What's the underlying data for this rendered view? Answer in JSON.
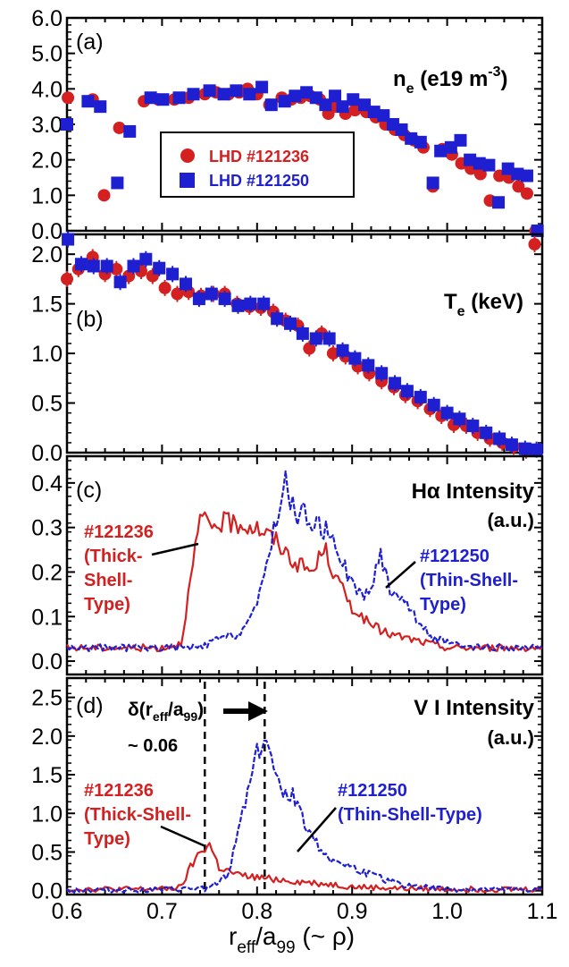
{
  "figure": {
    "x_axis_label": "r",
    "x_axis_sub1": "eff",
    "x_axis_mid": "/a",
    "x_axis_sub2": "99",
    "x_axis_tail": " (~ ρ)"
  },
  "chart_data": [
    {
      "type": "scatter",
      "panel": "(a)",
      "ylabel_main": "n",
      "ylabel_sub": "e",
      "ylabel_rest": " (e19 m",
      "ylabel_sup": "-3",
      "ylabel_close": ")",
      "xlim": [
        0.6,
        1.1
      ],
      "ylim": [
        0.0,
        6.0
      ],
      "x_ticks": [
        "0.6",
        "0.7",
        "0.8",
        "0.9",
        "1.0",
        "1.1"
      ],
      "y_ticks": [
        "0.0",
        "1.0",
        "2.0",
        "3.0",
        "4.0",
        "5.0",
        "6.0"
      ],
      "legend": [
        "LHD #121236",
        "LHD #121250"
      ],
      "series": [
        {
          "name": "LHD #121236",
          "color": "#d42020",
          "marker": "circle",
          "x": [
            0.601,
            0.627,
            0.639,
            0.655,
            0.681,
            0.696,
            0.713,
            0.728,
            0.745,
            0.757,
            0.77,
            0.781,
            0.79,
            0.8,
            0.813,
            0.826,
            0.836,
            0.846,
            0.856,
            0.866,
            0.875,
            0.883,
            0.893,
            0.903,
            0.915,
            0.925,
            0.935,
            0.945,
            0.955,
            0.965,
            0.975,
            0.985,
            0.995,
            1.005,
            1.015,
            1.025,
            1.035,
            1.045,
            1.055,
            1.065,
            1.075,
            1.084,
            1.093
          ],
          "y": [
            3.75,
            3.7,
            1.0,
            2.9,
            3.65,
            3.7,
            3.7,
            3.75,
            3.85,
            3.9,
            3.85,
            3.9,
            4.0,
            3.85,
            3.55,
            3.75,
            3.7,
            3.75,
            3.8,
            3.7,
            3.3,
            3.5,
            3.3,
            3.4,
            3.35,
            3.2,
            3.0,
            2.85,
            2.7,
            2.55,
            2.35,
            1.25,
            2.3,
            2.15,
            1.9,
            1.75,
            1.6,
            0.85,
            1.55,
            1.5,
            1.25,
            1.05,
            0.0
          ]
        },
        {
          "name": "LHD #121250",
          "color": "#1f1fd2",
          "marker": "square",
          "x": [
            0.6,
            0.622,
            0.635,
            0.653,
            0.666,
            0.688,
            0.701,
            0.718,
            0.733,
            0.75,
            0.765,
            0.778,
            0.792,
            0.805,
            0.815,
            0.829,
            0.84,
            0.852,
            0.862,
            0.872,
            0.882,
            0.89,
            0.901,
            0.913,
            0.923,
            0.933,
            0.943,
            0.952,
            0.962,
            0.972,
            0.985,
            0.993,
            1.004,
            1.014,
            1.024,
            1.034,
            1.044,
            1.054,
            1.064,
            1.074,
            1.084,
            1.095
          ],
          "y": [
            3.0,
            3.65,
            3.5,
            1.35,
            2.8,
            3.75,
            3.7,
            3.75,
            3.85,
            3.95,
            3.85,
            3.95,
            3.85,
            4.05,
            3.55,
            3.65,
            3.8,
            3.9,
            3.75,
            3.55,
            3.8,
            3.5,
            3.7,
            3.55,
            3.35,
            3.25,
            3.0,
            2.85,
            2.6,
            2.5,
            1.35,
            2.25,
            2.35,
            2.55,
            2.0,
            1.9,
            1.85,
            0.8,
            1.75,
            1.6,
            1.55,
            0.0
          ]
        }
      ]
    },
    {
      "type": "scatter",
      "panel": "(b)",
      "ylabel_main": "T",
      "ylabel_sub": "e",
      "ylabel_rest": " (keV)",
      "xlim": [
        0.6,
        1.1
      ],
      "ylim": [
        0.0,
        2.2
      ],
      "x_ticks": [
        "0.6",
        "0.7",
        "0.8",
        "0.9",
        "1.0",
        "1.1"
      ],
      "y_ticks": [
        "0.0",
        "0.5",
        "1.0",
        "1.5",
        "2.0"
      ],
      "series": [
        {
          "name": "LHD #121236",
          "color": "#d42020",
          "marker": "circle",
          "x": [
            0.6,
            0.612,
            0.627,
            0.64,
            0.652,
            0.665,
            0.678,
            0.69,
            0.703,
            0.716,
            0.728,
            0.741,
            0.754,
            0.766,
            0.779,
            0.792,
            0.804,
            0.817,
            0.83,
            0.843,
            0.855,
            0.868,
            0.88,
            0.893,
            0.906,
            0.918,
            0.931,
            0.944,
            0.956,
            0.969,
            0.982,
            0.994,
            1.007,
            1.02,
            1.032,
            1.045,
            1.058,
            1.07,
            1.083,
            1.092
          ],
          "y": [
            1.75,
            1.85,
            1.97,
            1.8,
            1.85,
            1.78,
            1.83,
            1.78,
            1.66,
            1.6,
            1.62,
            1.58,
            1.6,
            1.6,
            1.5,
            1.47,
            1.46,
            1.42,
            1.33,
            1.28,
            1.05,
            1.2,
            1.0,
            0.97,
            0.87,
            0.8,
            0.72,
            0.66,
            0.58,
            0.52,
            0.44,
            0.37,
            0.28,
            0.27,
            0.2,
            0.14,
            0.1,
            0.06,
            0.02,
            2.1
          ]
        },
        {
          "name": "LHD #121250",
          "color": "#1f1fd2",
          "marker": "square",
          "x": [
            0.601,
            0.615,
            0.628,
            0.642,
            0.656,
            0.67,
            0.683,
            0.697,
            0.711,
            0.725,
            0.739,
            0.752,
            0.766,
            0.78,
            0.793,
            0.807,
            0.821,
            0.835,
            0.848,
            0.862,
            0.876,
            0.89,
            0.903,
            0.917,
            0.931,
            0.945,
            0.958,
            0.972,
            0.986,
            1.0,
            1.013,
            1.027,
            1.041,
            1.055,
            1.068,
            1.082,
            1.094
          ],
          "y": [
            2.15,
            1.9,
            1.88,
            1.88,
            1.72,
            1.88,
            1.95,
            1.86,
            1.8,
            1.7,
            1.55,
            1.6,
            1.55,
            1.48,
            1.5,
            1.5,
            1.35,
            1.3,
            1.2,
            1.15,
            1.15,
            1.03,
            0.95,
            0.88,
            0.8,
            0.7,
            0.62,
            0.56,
            0.48,
            0.4,
            0.34,
            0.27,
            0.2,
            0.14,
            0.08,
            0.04,
            0.03
          ]
        }
      ]
    },
    {
      "type": "line",
      "panel": "(c)",
      "ylabel_main": "Hα Intensity",
      "ylabel_rest": "(a.u.)",
      "xlim": [
        0.6,
        1.1
      ],
      "ylim": [
        -0.03,
        0.46
      ],
      "x_ticks": [
        "0.6",
        "0.7",
        "0.8",
        "0.9",
        "1.0",
        "1.1"
      ],
      "y_ticks": [
        "0.0",
        "0.1",
        "0.2",
        "0.3",
        "0.4"
      ],
      "annotations": [
        {
          "lines": [
            "#121236",
            "(Thick-",
            "Shell-",
            "Type)"
          ],
          "color": "#d42020"
        },
        {
          "lines": [
            "#121250",
            "(Thin-Shell-",
            "Type)"
          ],
          "color": "#1f1fd2"
        }
      ],
      "series": [
        {
          "name": "#121236",
          "color": "#d42020",
          "x": [
            0.6,
            0.65,
            0.7,
            0.72,
            0.73,
            0.74,
            0.75,
            0.76,
            0.78,
            0.8,
            0.82,
            0.84,
            0.86,
            0.87,
            0.88,
            0.9,
            0.92,
            0.94,
            0.96,
            0.98,
            1.0,
            1.02,
            1.05,
            1.08,
            1.1
          ],
          "y": [
            0.03,
            0.03,
            0.03,
            0.04,
            0.18,
            0.32,
            0.3,
            0.31,
            0.31,
            0.3,
            0.27,
            0.22,
            0.2,
            0.26,
            0.2,
            0.12,
            0.08,
            0.06,
            0.05,
            0.04,
            0.03,
            0.03,
            0.03,
            0.03,
            0.03
          ]
        },
        {
          "name": "#121250",
          "color": "#1f1fd2",
          "x": [
            0.6,
            0.65,
            0.7,
            0.74,
            0.76,
            0.78,
            0.8,
            0.81,
            0.82,
            0.83,
            0.84,
            0.85,
            0.86,
            0.88,
            0.9,
            0.91,
            0.92,
            0.93,
            0.94,
            0.95,
            0.96,
            0.98,
            1.0,
            1.02,
            1.05,
            1.08,
            1.1
          ],
          "y": [
            0.03,
            0.03,
            0.03,
            0.03,
            0.05,
            0.06,
            0.12,
            0.22,
            0.32,
            0.4,
            0.33,
            0.33,
            0.31,
            0.28,
            0.17,
            0.15,
            0.16,
            0.24,
            0.16,
            0.15,
            0.12,
            0.06,
            0.04,
            0.03,
            0.03,
            0.03,
            0.03
          ]
        }
      ]
    },
    {
      "type": "line",
      "panel": "(d)",
      "ylabel_main": "V I Intensity",
      "ylabel_rest": "(a.u.)",
      "xlim": [
        0.6,
        1.1
      ],
      "ylim": [
        -0.05,
        2.75
      ],
      "x_ticks": [
        "0.6",
        "0.7",
        "0.8",
        "0.9",
        "1.0",
        "1.1"
      ],
      "y_ticks": [
        "0.0",
        "0.5",
        "1.0",
        "1.5",
        "2.0",
        "2.5"
      ],
      "vlines": [
        0.745,
        0.808
      ],
      "delta_label": {
        "main": "δ(r",
        "sub1": "eff",
        "mid": "/a",
        "sub2": "99",
        "close": ")",
        "value": "~ 0.06"
      },
      "annotations": [
        {
          "lines": [
            "#121236",
            "(Thick-Shell-",
            "Type)"
          ],
          "color": "#d42020"
        },
        {
          "lines": [
            "#121250",
            "(Thin-Shell-Type)"
          ],
          "color": "#1f1fd2"
        }
      ],
      "series": [
        {
          "name": "#121236",
          "color": "#d42020",
          "x": [
            0.6,
            0.65,
            0.7,
            0.72,
            0.73,
            0.74,
            0.75,
            0.76,
            0.78,
            0.8,
            0.82,
            0.84,
            0.86,
            0.88,
            0.9,
            0.95,
            1.0,
            1.05,
            1.1
          ],
          "y": [
            0.02,
            0.02,
            0.02,
            0.04,
            0.3,
            0.5,
            0.6,
            0.3,
            0.2,
            0.17,
            0.15,
            0.12,
            0.1,
            0.08,
            0.05,
            0.03,
            0.02,
            0.02,
            0.02
          ]
        },
        {
          "name": "#121250",
          "color": "#1f1fd2",
          "x": [
            0.6,
            0.7,
            0.75,
            0.77,
            0.78,
            0.79,
            0.8,
            0.81,
            0.82,
            0.83,
            0.84,
            0.85,
            0.86,
            0.87,
            0.88,
            0.9,
            0.92,
            0.95,
            1.0,
            1.05,
            1.1
          ],
          "y": [
            0.01,
            0.01,
            0.03,
            0.2,
            0.8,
            1.3,
            1.8,
            2.0,
            1.4,
            1.3,
            1.2,
            0.9,
            0.65,
            0.5,
            0.4,
            0.3,
            0.2,
            0.08,
            0.02,
            0.01,
            0.01
          ]
        }
      ]
    }
  ]
}
